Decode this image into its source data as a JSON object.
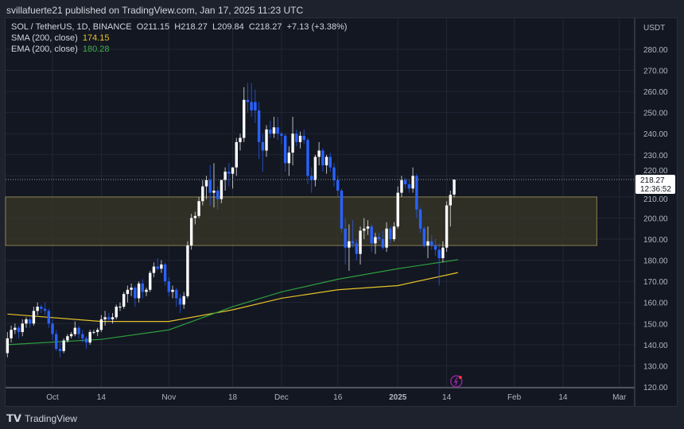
{
  "header": {
    "published": "svillafuerte21 published on TradingView.com, Jan 17, 2025 11:23 UTC"
  },
  "legend": {
    "symbol": "SOL / TetherUS, 1D, BINANCE",
    "open": "O211.15",
    "high": "H218.27",
    "low": "L209.84",
    "close": "C218.27",
    "change": "+7.13 (+3.38%)",
    "sma_label": "SMA (200, close)",
    "sma_value": "174.15",
    "ema_label": "EMA (200, close)",
    "ema_value": "180.28"
  },
  "price_axis": {
    "currency": "USDT",
    "ticks": [
      "280.00",
      "270.00",
      "260.00",
      "250.00",
      "240.00",
      "230.00",
      "220.00",
      "210.00",
      "200.00",
      "190.00",
      "180.00",
      "170.00",
      "160.00",
      "150.00",
      "140.00",
      "130.00",
      "120.00"
    ],
    "last_price": "218.27",
    "countdown": "12:36:52"
  },
  "time_axis": {
    "ticks": [
      {
        "label": "Oct",
        "date": "2024-10-01"
      },
      {
        "label": "14",
        "date": "2024-10-14"
      },
      {
        "label": "Nov",
        "date": "2024-11-01"
      },
      {
        "label": "18",
        "date": "2024-11-18"
      },
      {
        "label": "Dec",
        "date": "2024-12-01"
      },
      {
        "label": "16",
        "date": "2024-12-16"
      },
      {
        "label": "2025",
        "date": "2025-01-01",
        "bold": true
      },
      {
        "label": "14",
        "date": "2025-01-14"
      },
      {
        "label": "Feb",
        "date": "2025-02-01"
      },
      {
        "label": "14",
        "date": "2025-02-14"
      },
      {
        "label": "Mar",
        "date": "2025-03-01"
      }
    ]
  },
  "footer": {
    "brand": "TradingView"
  },
  "colors": {
    "up": "#ffffff",
    "down": "#2962ff",
    "sma": "#e6c229",
    "ema": "#2e9e3e",
    "zone": "#3a3828",
    "accent": "#9c27b0"
  },
  "chart_data": {
    "type": "candlestick",
    "start_date": "2024-09-19",
    "ylim": [
      120,
      285
    ],
    "ohlc": [
      [
        136,
        146,
        134,
        143
      ],
      [
        143,
        149,
        141,
        147
      ],
      [
        147,
        150,
        145,
        148
      ],
      [
        148,
        149,
        143,
        146
      ],
      [
        146,
        152,
        144,
        150
      ],
      [
        150,
        153,
        148,
        152
      ],
      [
        152,
        153,
        148,
        150
      ],
      [
        150,
        158,
        149,
        156
      ],
      [
        156,
        160,
        154,
        158
      ],
      [
        158,
        159,
        155,
        157
      ],
      [
        157,
        160,
        154,
        156
      ],
      [
        156,
        157,
        148,
        150
      ],
      [
        150,
        152,
        142,
        145
      ],
      [
        145,
        147,
        137,
        138
      ],
      [
        138,
        141,
        134,
        137
      ],
      [
        137,
        143,
        136,
        142
      ],
      [
        142,
        145,
        141,
        144
      ],
      [
        144,
        146,
        143,
        145
      ],
      [
        145,
        151,
        144,
        148
      ],
      [
        148,
        149,
        143,
        145
      ],
      [
        145,
        147,
        141,
        143
      ],
      [
        143,
        144,
        138,
        141
      ],
      [
        141,
        147,
        140,
        146
      ],
      [
        146,
        147,
        145,
        146
      ],
      [
        146,
        148,
        144,
        147
      ],
      [
        147,
        154,
        146,
        152
      ],
      [
        152,
        156,
        149,
        153
      ],
      [
        153,
        155,
        151,
        152
      ],
      [
        152,
        155,
        150,
        153
      ],
      [
        153,
        159,
        152,
        158
      ],
      [
        158,
        160,
        156,
        158
      ],
      [
        158,
        165,
        157,
        164
      ],
      [
        164,
        168,
        160,
        166
      ],
      [
        166,
        169,
        163,
        167
      ],
      [
        167,
        168,
        158,
        162
      ],
      [
        162,
        170,
        160,
        169
      ],
      [
        169,
        171,
        162,
        165
      ],
      [
        165,
        167,
        163,
        166
      ],
      [
        166,
        175,
        165,
        174
      ],
      [
        174,
        179,
        172,
        177
      ],
      [
        177,
        181,
        175,
        176
      ],
      [
        176,
        180,
        174,
        178
      ],
      [
        178,
        179,
        168,
        170
      ],
      [
        170,
        172,
        163,
        165
      ],
      [
        165,
        168,
        162,
        166
      ],
      [
        166,
        167,
        158,
        162
      ],
      [
        162,
        164,
        155,
        159
      ],
      [
        159,
        165,
        157,
        163
      ],
      [
        163,
        189,
        162,
        187
      ],
      [
        187,
        202,
        185,
        200
      ],
      [
        200,
        203,
        197,
        201
      ],
      [
        201,
        210,
        200,
        208
      ],
      [
        208,
        218,
        206,
        215
      ],
      [
        215,
        220,
        209,
        218
      ],
      [
        218,
        225,
        206,
        212
      ],
      [
        212,
        226,
        205,
        213
      ],
      [
        213,
        215,
        204,
        209
      ],
      [
        209,
        218,
        207,
        218
      ],
      [
        218,
        224,
        213,
        222
      ],
      [
        222,
        226,
        215,
        221
      ],
      [
        221,
        224,
        214,
        224
      ],
      [
        224,
        238,
        220,
        236
      ],
      [
        236,
        240,
        232,
        238
      ],
      [
        238,
        262,
        236,
        256
      ],
      [
        256,
        264,
        250,
        255
      ],
      [
        255,
        264,
        248,
        251
      ],
      [
        255,
        261,
        245,
        251
      ],
      [
        251,
        255,
        228,
        236
      ],
      [
        236,
        240,
        222,
        232
      ],
      [
        232,
        244,
        229,
        242
      ],
      [
        242,
        246,
        238,
        240
      ],
      [
        240,
        248,
        238,
        243
      ],
      [
        243,
        248,
        237,
        240
      ],
      [
        240,
        241,
        235,
        239
      ],
      [
        239,
        240,
        222,
        226
      ],
      [
        226,
        234,
        220,
        231
      ],
      [
        231,
        248,
        225,
        240
      ],
      [
        240,
        242,
        234,
        236
      ],
      [
        236,
        241,
        233,
        239
      ],
      [
        239,
        242,
        235,
        237
      ],
      [
        237,
        238,
        216,
        220
      ],
      [
        220,
        224,
        212,
        218
      ],
      [
        218,
        230,
        215,
        229
      ],
      [
        229,
        236,
        225,
        232
      ],
      [
        232,
        233,
        222,
        225
      ],
      [
        225,
        230,
        221,
        229
      ],
      [
        229,
        231,
        222,
        224
      ],
      [
        224,
        226,
        215,
        218
      ],
      [
        218,
        220,
        210,
        213
      ],
      [
        213,
        214,
        193,
        195
      ],
      [
        195,
        200,
        178,
        186
      ],
      [
        186,
        197,
        175,
        189
      ],
      [
        189,
        199,
        186,
        188
      ],
      [
        188,
        190,
        180,
        183
      ],
      [
        183,
        196,
        178,
        194
      ],
      [
        194,
        200,
        190,
        195
      ],
      [
        195,
        199,
        192,
        196
      ],
      [
        196,
        197,
        184,
        188
      ],
      [
        188,
        193,
        183,
        191
      ],
      [
        191,
        193,
        189,
        190
      ],
      [
        190,
        194,
        185,
        186
      ],
      [
        186,
        198,
        184,
        195
      ],
      [
        195,
        196,
        188,
        190
      ],
      [
        190,
        198,
        189,
        196
      ],
      [
        196,
        215,
        195,
        212
      ],
      [
        212,
        220,
        210,
        218
      ],
      [
        218,
        219,
        214,
        216
      ],
      [
        216,
        218,
        212,
        214
      ],
      [
        214,
        224,
        212,
        220
      ],
      [
        220,
        221,
        200,
        204
      ],
      [
        204,
        205,
        193,
        195
      ],
      [
        195,
        196,
        186,
        187
      ],
      [
        187,
        196,
        181,
        189
      ],
      [
        189,
        192,
        185,
        187
      ],
      [
        187,
        190,
        182,
        185
      ],
      [
        185,
        188,
        168,
        181
      ],
      [
        181,
        189,
        179,
        186
      ],
      [
        186,
        208,
        184,
        206
      ],
      [
        206,
        213,
        196,
        211
      ],
      [
        211.15,
        218.27,
        209.84,
        218.27
      ]
    ],
    "sma": [
      [
        "2024-09-19",
        154.5
      ],
      [
        "2024-10-14",
        151
      ],
      [
        "2024-11-01",
        151
      ],
      [
        "2024-11-18",
        156.5
      ],
      [
        "2024-12-01",
        162
      ],
      [
        "2024-12-16",
        166
      ],
      [
        "2025-01-01",
        168
      ],
      [
        "2025-01-17",
        174.15
      ]
    ],
    "ema": [
      [
        "2024-09-19",
        140
      ],
      [
        "2024-10-14",
        142.5
      ],
      [
        "2024-11-01",
        147
      ],
      [
        "2024-11-18",
        158
      ],
      [
        "2024-12-01",
        165
      ],
      [
        "2024-12-16",
        171
      ],
      [
        "2025-01-01",
        176
      ],
      [
        "2025-01-17",
        180.28
      ]
    ],
    "zone": {
      "low": 187,
      "high": 210,
      "from": "2024-09-19",
      "to": "2025-02-23"
    },
    "last_price_line": 218.27
  }
}
